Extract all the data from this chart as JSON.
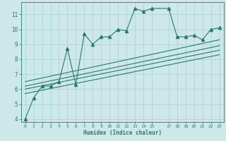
{
  "xlabel": "Humidex (Indice chaleur)",
  "bg_color": "#cce8e8",
  "grid_color": "#b0d8d8",
  "line_color": "#2a7a6a",
  "xlim": [
    -0.5,
    23.5
  ],
  "ylim": [
    3.8,
    11.8
  ],
  "yticks": [
    4,
    5,
    6,
    7,
    8,
    9,
    10,
    11
  ],
  "xticks": [
    0,
    1,
    2,
    3,
    4,
    5,
    6,
    7,
    8,
    9,
    10,
    11,
    12,
    13,
    14,
    15,
    17,
    18,
    19,
    20,
    21,
    22,
    23
  ],
  "main_line_x": [
    0,
    1,
    2,
    3,
    4,
    5,
    6,
    7,
    8,
    9,
    10,
    11,
    12,
    13,
    14,
    15,
    17,
    18,
    19,
    20,
    21,
    22,
    23
  ],
  "main_line_y": [
    4.0,
    5.4,
    6.2,
    6.2,
    6.5,
    8.7,
    6.3,
    9.7,
    9.0,
    9.5,
    9.5,
    10.0,
    9.9,
    11.4,
    11.2,
    11.4,
    11.4,
    9.5,
    9.5,
    9.6,
    9.3,
    10.0,
    10.1
  ],
  "linear_lines": [
    {
      "x0": 0.0,
      "y0": 6.5,
      "x1": 23,
      "y1": 9.3
    },
    {
      "x0": 0.0,
      "y0": 6.2,
      "x1": 23,
      "y1": 8.9
    },
    {
      "x0": 0.0,
      "y0": 6.0,
      "x1": 23,
      "y1": 8.6
    },
    {
      "x0": 0.0,
      "y0": 5.7,
      "x1": 23,
      "y1": 8.3
    }
  ]
}
